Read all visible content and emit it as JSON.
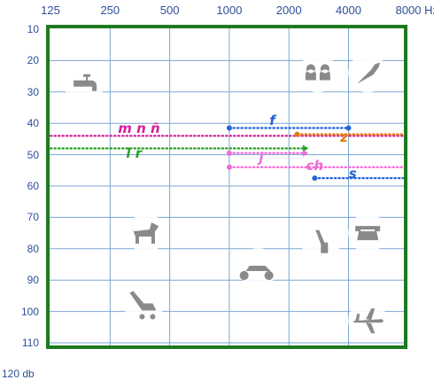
{
  "frequency_labels": [
    "125",
    "250",
    "500",
    "1000",
    "2000",
    "4000",
    "8000 Hz"
  ],
  "db_labels": [
    "10",
    "20",
    "30",
    "40",
    "50",
    "60",
    "70",
    "80",
    "90",
    "100",
    "110",
    "120 db"
  ],
  "colors": {
    "frame": "#1e7a1e",
    "grid": "#7aa6d6",
    "labels": "#2e4f9a",
    "icons": "#8a8a8a",
    "magenta": "#d4209c",
    "green": "#25a125",
    "blue": "#2563d6",
    "orange": "#e07a10",
    "pink": "#f06ad4"
  },
  "phonemes": [
    {
      "text": "m n ñ",
      "color": "magenta",
      "freq_start": 125,
      "freq_end": 8000,
      "db": 44,
      "label_freq": 350,
      "label_db": 41.5
    },
    {
      "text": "l r",
      "color": "green",
      "freq_start": 125,
      "freq_end": 2500,
      "db": 48,
      "label_freq": 330,
      "label_db": 49.5
    },
    {
      "text": "f",
      "color": "blue",
      "freq_start": 1000,
      "freq_end": 4000,
      "db": 41.5,
      "label_freq": 1650,
      "label_db": 39
    },
    {
      "text": "z",
      "color": "orange",
      "freq_start": 2200,
      "freq_end": 8000,
      "db": 43.5,
      "label_freq": 3800,
      "label_db": 44.5
    },
    {
      "text": "j",
      "color": "pink",
      "freq_start": 1000,
      "freq_end": 2500,
      "db": 49.5,
      "label_freq": 1450,
      "label_db": 51
    },
    {
      "text": "ch",
      "color": "pink",
      "freq_start": 1000,
      "freq_end": 8000,
      "db": 54,
      "label_freq": 2700,
      "label_db": 53.5
    },
    {
      "text": "s",
      "color": "blue",
      "freq_start": 2700,
      "freq_end": 8000,
      "db": 57.5,
      "label_freq": 4200,
      "label_db": 56
    }
  ],
  "icons": [
    {
      "name": "faucet-icon",
      "freq": 185,
      "db": 28
    },
    {
      "name": "people-icon",
      "freq": 2800,
      "db": 24
    },
    {
      "name": "bird-icon",
      "freq": 5000,
      "db": 24
    },
    {
      "name": "dog-icon",
      "freq": 380,
      "db": 75
    },
    {
      "name": "telephone-icon",
      "freq": 5000,
      "db": 75
    },
    {
      "name": "vacuum-icon",
      "freq": 2900,
      "db": 78
    },
    {
      "name": "motorcycle-icon",
      "freq": 1400,
      "db": 86
    },
    {
      "name": "lawnmower-icon",
      "freq": 370,
      "db": 98
    },
    {
      "name": "airplane-icon",
      "freq": 5000,
      "db": 103
    }
  ]
}
